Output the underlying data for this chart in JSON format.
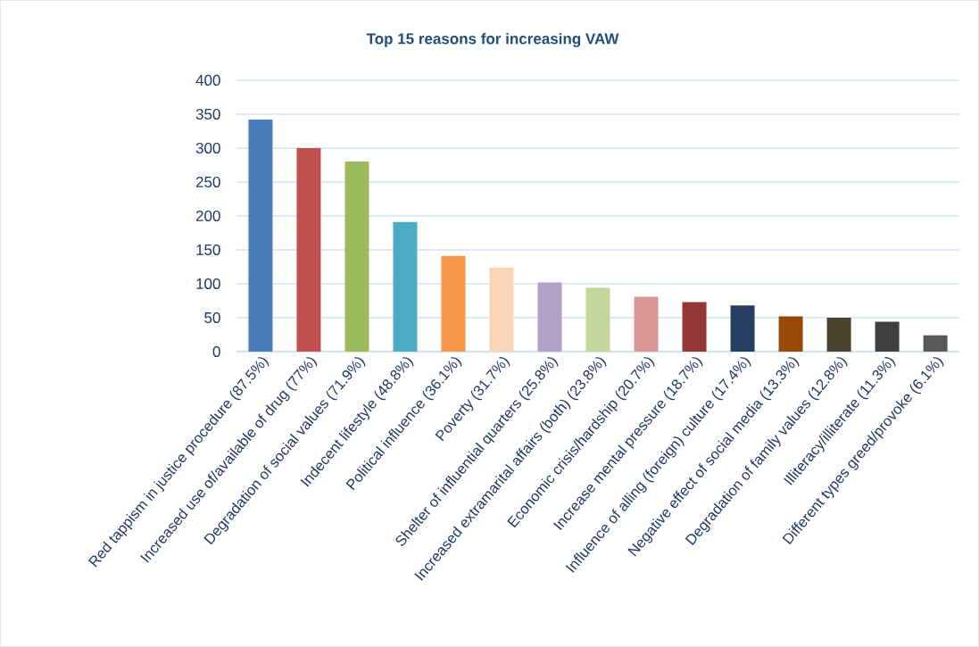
{
  "chart_data": {
    "type": "bar",
    "title": "Top 15 reasons for increasing VAW",
    "categories": [
      "Red tappism in justice procedure (87.5%)",
      "Increased use of/available of drug (77%)",
      "Degradation of social values (71.9%)",
      "Indecent lifestyle (48.8%)",
      "Political influence (36.1%)",
      "Poverty (31.7%)",
      "Shelter of influential quarters (25.8%)",
      "Increased extramarital affairs (both) (23.8%)",
      "Economic crisis/hardship (20.7%)",
      "Increase mental pressure (18.7%)",
      "Influence of alling (foreign) culture (17.4%)",
      "Negative effect of social media (13.3%)",
      "Degradation of family values (12.8%)",
      "Illiteracy/illiterate (11.3%)",
      "Different types greed/provoke (6.1%)"
    ],
    "values": [
      342,
      300,
      280,
      191,
      141,
      124,
      102,
      94,
      81,
      73,
      68,
      52,
      50,
      44,
      24
    ],
    "colors": [
      "#4a7ebb",
      "#c0504d",
      "#9bbb59",
      "#4bacc6",
      "#f79646",
      "#fbd4b4",
      "#b2a2c7",
      "#c4d79b",
      "#d99694",
      "#953735",
      "#254061",
      "#984807",
      "#4a452a",
      "#3f3f3f",
      "#595959"
    ],
    "ylim": [
      0,
      400
    ],
    "yticks": [
      0,
      50,
      100,
      150,
      200,
      250,
      300,
      350,
      400
    ],
    "grid": "y"
  }
}
